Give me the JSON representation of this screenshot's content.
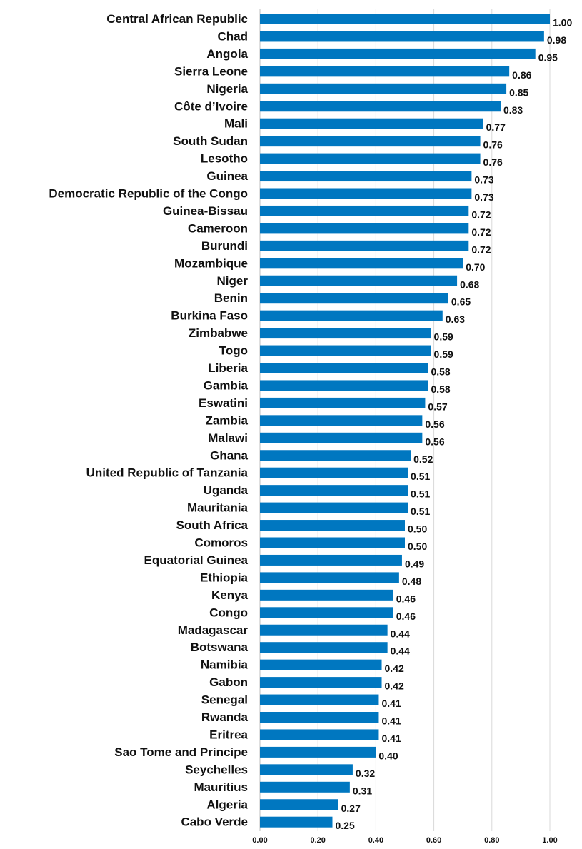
{
  "chart_data": {
    "type": "bar",
    "orientation": "horizontal",
    "title": "",
    "xlabel": "",
    "ylabel": "",
    "xlim": [
      0,
      1
    ],
    "xticks": [
      "0.00",
      "0.20",
      "0.40",
      "0.60",
      "0.80",
      "1.00"
    ],
    "grid": "vertical",
    "legend": "none",
    "bar_color": "#0077C0",
    "categories": [
      "Central African Republic",
      "Chad",
      "Angola",
      "Sierra Leone",
      "Nigeria",
      "Côte d’Ivoire",
      "Mali",
      "South Sudan",
      "Lesotho",
      "Guinea",
      "Democratic Republic of the Congo",
      "Guinea-Bissau",
      "Cameroon",
      "Burundi",
      "Mozambique",
      "Niger",
      "Benin",
      "Burkina Faso",
      "Zimbabwe",
      "Togo",
      "Liberia",
      "Gambia",
      "Eswatini",
      "Zambia",
      "Malawi",
      "Ghana",
      "United Republic of Tanzania",
      "Uganda",
      "Mauritania",
      "South Africa",
      "Comoros",
      "Equatorial Guinea",
      "Ethiopia",
      "Kenya",
      "Congo",
      "Madagascar",
      "Botswana",
      "Namibia",
      "Gabon",
      "Senegal",
      "Rwanda",
      "Eritrea",
      "Sao Tome and Principe",
      "Seychelles",
      "Mauritius",
      "Algeria",
      "Cabo Verde"
    ],
    "values": [
      1.0,
      0.98,
      0.95,
      0.86,
      0.85,
      0.83,
      0.77,
      0.76,
      0.76,
      0.73,
      0.73,
      0.72,
      0.72,
      0.72,
      0.7,
      0.68,
      0.65,
      0.63,
      0.59,
      0.59,
      0.58,
      0.58,
      0.57,
      0.56,
      0.56,
      0.52,
      0.51,
      0.51,
      0.51,
      0.5,
      0.5,
      0.49,
      0.48,
      0.46,
      0.46,
      0.44,
      0.44,
      0.42,
      0.42,
      0.41,
      0.41,
      0.41,
      0.4,
      0.32,
      0.31,
      0.27,
      0.25
    ],
    "value_labels": [
      "1.00",
      "0.98",
      "0.95",
      "0.86",
      "0.85",
      "0.83",
      "0.77",
      "0.76",
      "0.76",
      "0.73",
      "0.73",
      "0.72",
      "0.72",
      "0.72",
      "0.70",
      "0.68",
      "0.65",
      "0.63",
      "0.59",
      "0.59",
      "0.58",
      "0.58",
      "0.57",
      "0.56",
      "0.56",
      "0.52",
      "0.51",
      "0.51",
      "0.51",
      "0.50",
      "0.50",
      "0.49",
      "0.48",
      "0.46",
      "0.46",
      "0.44",
      "0.44",
      "0.42",
      "0.42",
      "0.41",
      "0.41",
      "0.41",
      "0.40",
      "0.32",
      "0.31",
      "0.27",
      "0.25"
    ]
  }
}
